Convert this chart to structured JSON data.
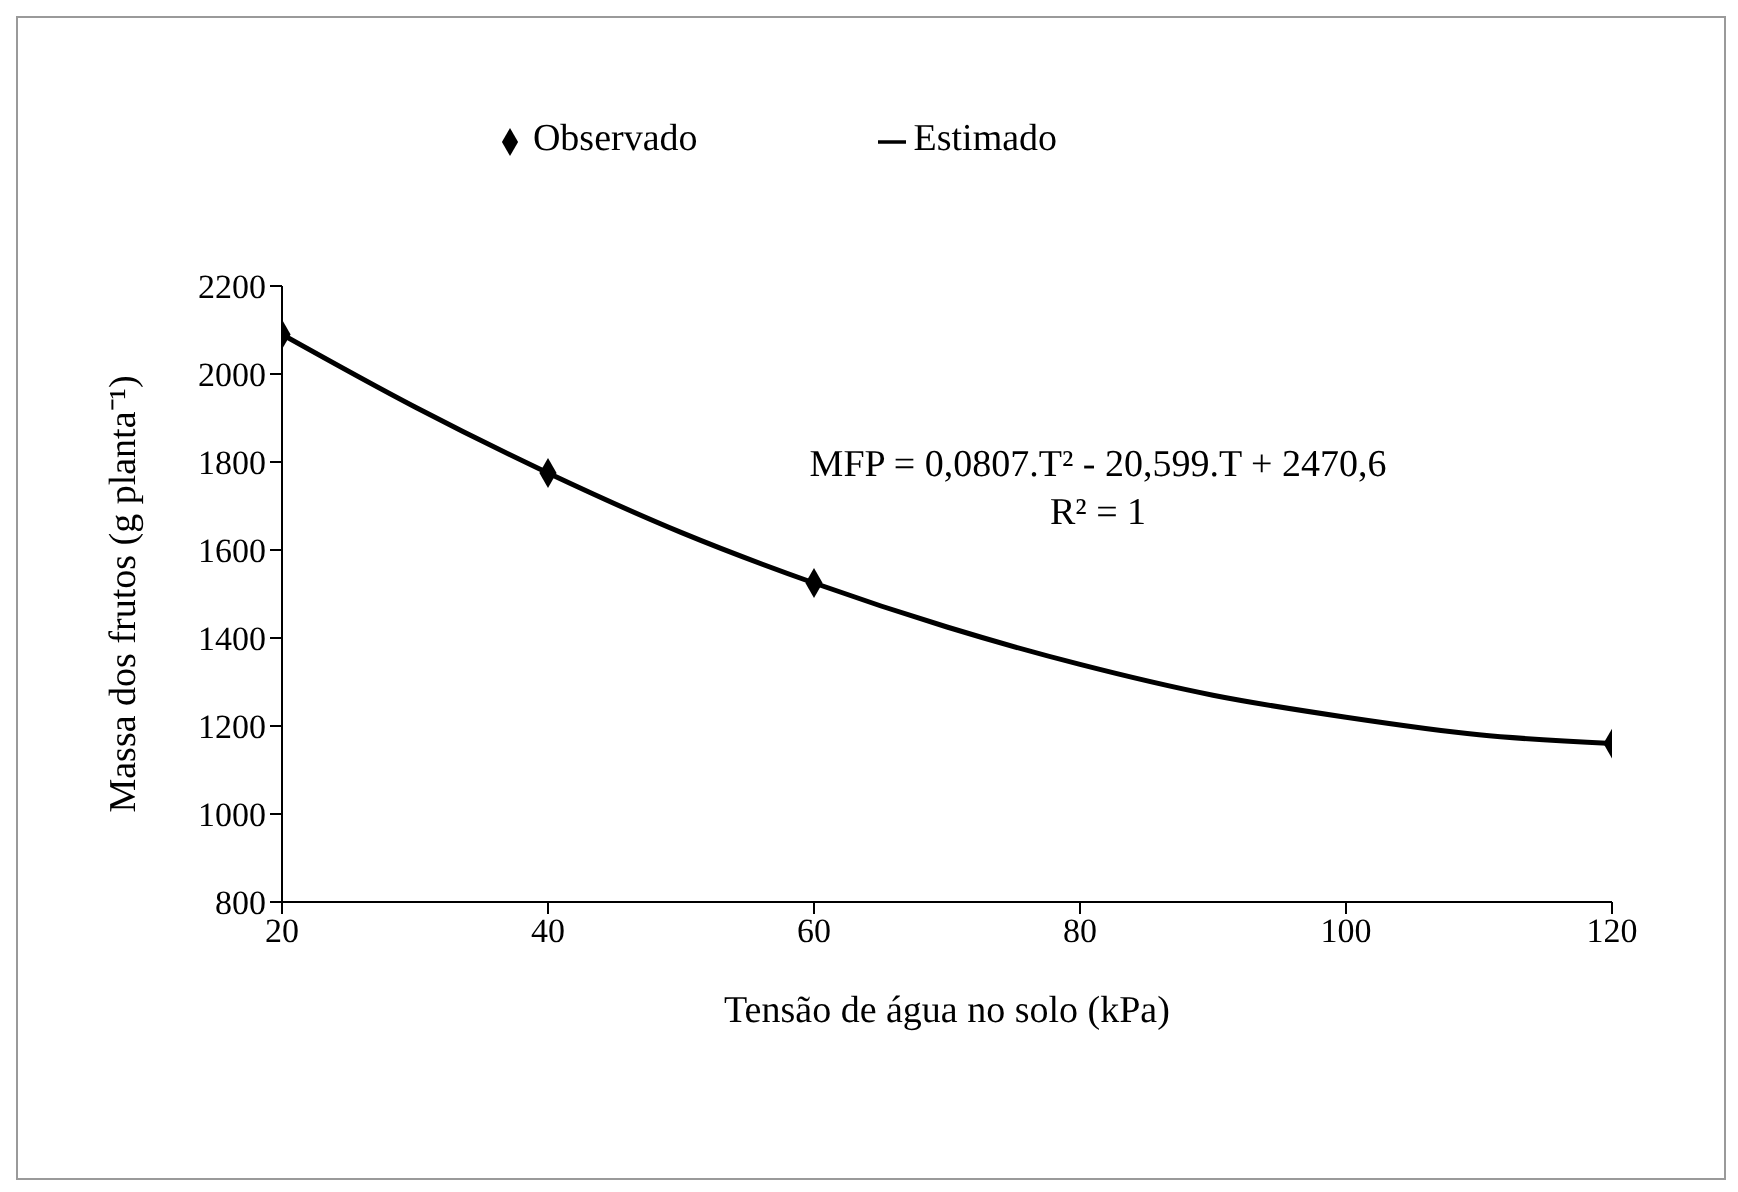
{
  "chart_data": {
    "type": "scatter",
    "xlabel": "Tensão de água no solo (kPa)",
    "ylabel": "Massa dos frutos (g planta⁻¹)",
    "xlim": [
      20,
      120
    ],
    "xticks": [
      20,
      40,
      60,
      80,
      100,
      120
    ],
    "ylim": [
      800,
      2200
    ],
    "yticks": [
      800,
      1000,
      1200,
      1400,
      1600,
      1800,
      2000,
      2200
    ],
    "grid": false,
    "legend": "top",
    "series": [
      {
        "name": "Observado",
        "marker": "diamond",
        "color": "#000000",
        "x": [
          20,
          40,
          60,
          120
        ],
        "values": [
          2090,
          1775,
          1525,
          1160
        ]
      },
      {
        "name": "Estimado",
        "type": "line",
        "marker": "none",
        "color": "#000000",
        "x": [
          20,
          30,
          40,
          50,
          60,
          70,
          80,
          90,
          100,
          110,
          120
        ],
        "values": [
          2090,
          1925,
          1775,
          1640,
          1525,
          1425,
          1340,
          1270,
          1220,
          1180,
          1160
        ]
      }
    ],
    "annotations": [
      "MFP = 0,0807.T² - 20,599.T  + 2470,6",
      "R² = 1"
    ]
  }
}
